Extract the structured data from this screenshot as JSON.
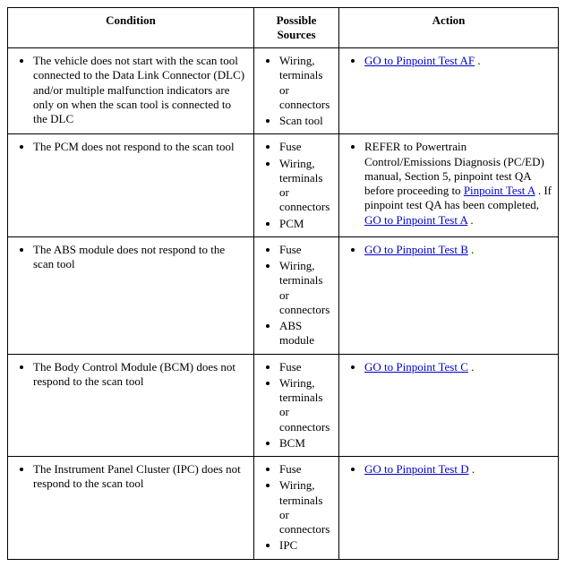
{
  "headers": {
    "condition": "Condition",
    "sources": "Possible Sources",
    "action": "Action"
  },
  "link_color": "#0000cc",
  "rows": [
    {
      "condition": "The vehicle does not start with the scan tool connected to the Data Link Connector (DLC) and/or multiple malfunction indicators are only on when the scan tool is connected to the DLC",
      "sources": [
        "Wiring, terminals or connectors",
        "Scan tool"
      ],
      "action_pre": "",
      "action_link": "GO to Pinpoint Test AF",
      "action_post": " ."
    },
    {
      "condition": "The PCM does not respond to the scan tool",
      "sources": [
        "Fuse",
        "Wiring, terminals or connectors",
        "PCM"
      ],
      "action_pre": "REFER to Powertrain Control/Emissions Diagnosis (PC/ED) manual, Section 5, pinpoint test QA before proceeding to ",
      "action_link": "Pinpoint Test A",
      "action_mid": " . If pinpoint test QA has been completed, ",
      "action_link2": "GO to Pinpoint Test A",
      "action_post": " ."
    },
    {
      "condition": "The ABS module does not respond to the scan tool",
      "sources": [
        "Fuse",
        "Wiring, terminals or connectors",
        "ABS module"
      ],
      "action_pre": "",
      "action_link": "GO to Pinpoint Test B",
      "action_post": " ."
    },
    {
      "condition": "The Body Control Module (BCM) does not respond to the scan tool",
      "sources": [
        "Fuse",
        "Wiring, terminals or connectors",
        "BCM"
      ],
      "action_pre": "",
      "action_link": "GO to Pinpoint Test C",
      "action_post": " ."
    },
    {
      "condition": "The Instrument Panel Cluster (IPC) does not respond to the scan tool",
      "sources": [
        "Fuse",
        "Wiring, terminals or connectors",
        "IPC"
      ],
      "action_pre": "",
      "action_link": "GO to Pinpoint Test D",
      "action_post": " ."
    }
  ]
}
